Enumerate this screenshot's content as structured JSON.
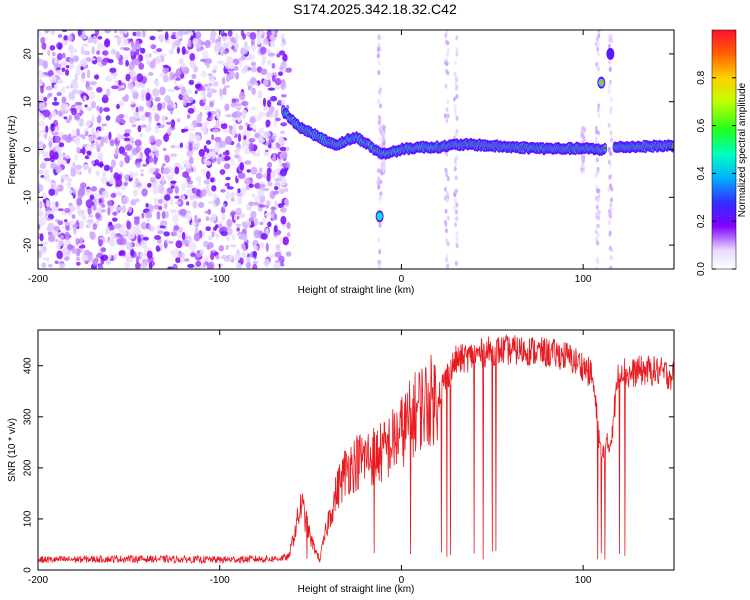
{
  "title": "S174.2025.342.18.32.C42",
  "chart_data": [
    {
      "type": "heatmap",
      "title": "S174.2025.342.18.32.C42",
      "xlabel": "Height of straight line (km)",
      "ylabel": "Frequency (Hz)",
      "xlim": [
        -200,
        150
      ],
      "ylim": [
        -25,
        25
      ],
      "xticks": [
        -200,
        -100,
        0,
        100
      ],
      "xtick_labels": [
        "-200",
        "-100",
        "0",
        "100"
      ],
      "yticks": [
        -20,
        -10,
        0,
        10,
        20
      ],
      "ytick_labels": [
        "-20",
        "-10",
        "0",
        "10",
        "20"
      ],
      "colorbar": {
        "label": "Normalized spectral amplitude",
        "range": [
          0,
          1
        ],
        "ticks": [
          0,
          0.2,
          0.4,
          0.6,
          0.8
        ],
        "tick_labels": [
          "0.0",
          "0.2",
          "0.4",
          "0.6",
          "0.8"
        ]
      },
      "noise_region_x": [
        -200,
        -62
      ],
      "dominant_ridge": {
        "x": [
          -65,
          -60,
          -55,
          -50,
          -45,
          -40,
          -35,
          -30,
          -25,
          -20,
          -15,
          -10,
          -5,
          0,
          10,
          20,
          30,
          40,
          60,
          80,
          100,
          110,
          120,
          150
        ],
        "freq": [
          8,
          6,
          4.5,
          3.5,
          2.5,
          1.5,
          1,
          2,
          2.5,
          1.5,
          0,
          -1,
          -0.5,
          0,
          0.5,
          0.5,
          1,
          1,
          0.5,
          0.2,
          0.2,
          0,
          0.5,
          0.8
        ]
      },
      "secondary_features": [
        {
          "x": 110,
          "freq": 14
        },
        {
          "x": -12,
          "freq": -14
        },
        {
          "x": 115,
          "freq": 20
        }
      ]
    },
    {
      "type": "line",
      "xlabel": "Height of straight line (km)",
      "ylabel": "SNR (10 * v/v)",
      "xlim": [
        -200,
        150
      ],
      "ylim": [
        0,
        470
      ],
      "xticks": [
        -200,
        -100,
        0,
        100
      ],
      "xtick_labels": [
        "-200",
        "-100",
        "0",
        "100"
      ],
      "yticks": [
        0,
        100,
        200,
        300,
        400
      ],
      "ytick_labels": [
        "0",
        "100",
        "200",
        "300",
        "400"
      ],
      "series": [
        {
          "name": "SNR",
          "color": "#e8191f",
          "x": [
            -200,
            -150,
            -100,
            -70,
            -62,
            -55,
            -50,
            -45,
            -40,
            -35,
            -30,
            -20,
            -10,
            0,
            10,
            20,
            25,
            30,
            40,
            50,
            60,
            70,
            80,
            90,
            100,
            105,
            110,
            115,
            120,
            125,
            130,
            140,
            150
          ],
          "y": [
            20,
            22,
            20,
            22,
            25,
            130,
            60,
            20,
            100,
            160,
            200,
            220,
            230,
            270,
            320,
            340,
            380,
            410,
            420,
            430,
            430,
            430,
            425,
            420,
            400,
            380,
            220,
            250,
            400,
            380,
            390,
            390,
            380
          ],
          "dropouts_x": [
            -52,
            -15,
            5,
            22,
            25,
            27,
            40,
            45,
            50,
            52,
            108,
            110,
            112,
            120,
            123
          ]
        }
      ]
    }
  ]
}
